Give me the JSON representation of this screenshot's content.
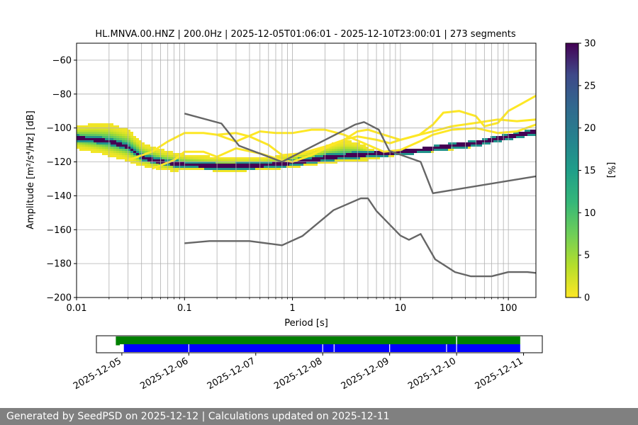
{
  "chart_data": {
    "type": "heatmap",
    "title": "HL.MNVA.00.HNZ | 200.0Hz | 2025-12-05T01:06:01 - 2025-12-10T23:00:01 | 273 segments",
    "xlabel": "Period [s]",
    "ylabel": "Amplitude [m²/s⁴/Hz] [dB]",
    "x_scale": "log",
    "xlim": [
      0.01,
      180
    ],
    "ylim": [
      -200,
      -50
    ],
    "x_ticks": [
      {
        "value": 0.01,
        "label": "0.01"
      },
      {
        "value": 0.1,
        "label": "0.1"
      },
      {
        "value": 1,
        "label": "1"
      },
      {
        "value": 10,
        "label": "10"
      },
      {
        "value": 100,
        "label": "100"
      }
    ],
    "y_ticks": [
      {
        "value": -60,
        "label": "−60"
      },
      {
        "value": -80,
        "label": "−80"
      },
      {
        "value": -100,
        "label": "−100"
      },
      {
        "value": -120,
        "label": "−120"
      },
      {
        "value": -140,
        "label": "−140"
      },
      {
        "value": -160,
        "label": "−160"
      },
      {
        "value": -180,
        "label": "−180"
      },
      {
        "value": -200,
        "label": "−200"
      }
    ],
    "grid": true,
    "colorbar": {
      "label": "[%]",
      "min": 0,
      "max": 30,
      "ticks": [
        {
          "value": 0,
          "label": "0"
        },
        {
          "value": 5,
          "label": "5"
        },
        {
          "value": 10,
          "label": "10"
        },
        {
          "value": 15,
          "label": "15"
        },
        {
          "value": 20,
          "label": "20"
        },
        {
          "value": 25,
          "label": "25"
        },
        {
          "value": 30,
          "label": "30"
        }
      ],
      "colormap": "viridis_r"
    },
    "noise_models": [
      {
        "points": [
          [
            0.1,
            -91.5
          ],
          [
            0.22,
            -97.4
          ],
          [
            0.32,
            -110.5
          ],
          [
            0.8,
            -120.0
          ],
          [
            3.8,
            -98.0
          ],
          [
            4.6,
            -96.5
          ],
          [
            6.3,
            -101.0
          ],
          [
            7.9,
            -113.5
          ],
          [
            15.4,
            -120.0
          ],
          [
            20,
            -138.5
          ],
          [
            180,
            -128.5
          ]
        ]
      },
      {
        "points": [
          [
            0.1,
            -168.0
          ],
          [
            0.17,
            -166.7
          ],
          [
            0.4,
            -166.7
          ],
          [
            0.8,
            -169.2
          ],
          [
            1.24,
            -163.7
          ],
          [
            2.4,
            -148.5
          ],
          [
            4.3,
            -141.5
          ],
          [
            5.0,
            -141.5
          ],
          [
            6.0,
            -149.0
          ],
          [
            10,
            -163.5
          ],
          [
            12,
            -166.0
          ],
          [
            15.4,
            -162.5
          ],
          [
            21,
            -177.5
          ],
          [
            32,
            -185.0
          ],
          [
            45,
            -187.5
          ],
          [
            70,
            -187.5
          ],
          [
            100,
            -185.0
          ],
          [
            150,
            -185.0
          ],
          [
            180,
            -185.5
          ]
        ]
      }
    ],
    "psd_mode": {
      "periods": [
        0.01,
        0.015,
        0.02,
        0.03,
        0.04,
        0.06,
        0.08,
        0.1,
        0.15,
        0.2,
        0.3,
        0.5,
        0.8,
        1,
        1.5,
        2,
        3,
        4,
        5,
        6,
        8,
        10,
        15,
        20,
        30,
        50,
        70,
        100,
        150,
        180
      ],
      "db": [
        -106,
        -107,
        -108,
        -111,
        -117,
        -120,
        -121,
        -121.5,
        -122,
        -122.5,
        -122.5,
        -122,
        -121,
        -120.5,
        -119,
        -117.5,
        -116.5,
        -116,
        -115.5,
        -115,
        -114.5,
        -114,
        -113,
        -112,
        -110.5,
        -109,
        -107,
        -105,
        -103,
        -102
      ]
    },
    "psd_spread": {
      "periods": [
        0.01,
        0.015,
        0.02,
        0.03,
        0.04,
        0.06,
        0.08,
        0.1,
        0.15,
        0.2,
        0.3,
        0.5,
        0.8,
        1,
        1.5,
        2,
        3,
        4,
        5,
        6,
        8,
        10,
        15,
        20,
        30,
        50,
        70,
        100,
        150,
        180
      ],
      "upper_db": [
        -99,
        -98,
        -98,
        -101,
        -109,
        -113,
        -115,
        -116,
        -117,
        -117.5,
        -118,
        -118,
        -117,
        -116,
        -114,
        -111,
        -108,
        -109,
        -112,
        -114,
        -114,
        -113.5,
        -112.5,
        -111,
        -109.5,
        -108,
        -106,
        -104,
        -102,
        -101
      ],
      "lower_db": [
        -112,
        -114,
        -116,
        -119,
        -122,
        -124,
        -125,
        -124.5,
        -124.5,
        -125,
        -125,
        -124.5,
        -123.5,
        -123,
        -121.5,
        -120.5,
        -119.5,
        -119,
        -118.5,
        -117.5,
        -116.5,
        -115.5,
        -114.5,
        -113.5,
        -112.5,
        -110.5,
        -108.5,
        -106.5,
        -104.5,
        -103.5
      ]
    },
    "outlier_traces": [
      {
        "points": [
          [
            0.03,
            -119
          ],
          [
            0.05,
            -114
          ],
          [
            0.07,
            -108
          ],
          [
            0.1,
            -103
          ],
          [
            0.15,
            -103
          ],
          [
            0.2,
            -104
          ],
          [
            0.3,
            -103
          ],
          [
            0.4,
            -105
          ],
          [
            0.6,
            -110
          ],
          [
            0.8,
            -116
          ],
          [
            1.2,
            -115
          ],
          [
            2,
            -111
          ],
          [
            3,
            -107
          ],
          [
            4,
            -102
          ],
          [
            5,
            -101
          ],
          [
            7,
            -104
          ],
          [
            10,
            -107
          ],
          [
            15,
            -104
          ],
          [
            20,
            -98
          ],
          [
            25,
            -91
          ],
          [
            35,
            -90
          ],
          [
            50,
            -93
          ],
          [
            60,
            -99
          ],
          [
            80,
            -97
          ],
          [
            100,
            -90
          ],
          [
            130,
            -86
          ],
          [
            180,
            -81
          ]
        ]
      },
      {
        "points": [
          [
            0.05,
            -124
          ],
          [
            0.08,
            -119
          ],
          [
            0.1,
            -114
          ],
          [
            0.15,
            -114
          ],
          [
            0.2,
            -117
          ],
          [
            0.3,
            -112
          ],
          [
            0.5,
            -115
          ],
          [
            0.8,
            -119
          ],
          [
            1,
            -120
          ],
          [
            1.5,
            -116
          ],
          [
            2,
            -112
          ],
          [
            3,
            -107
          ],
          [
            4,
            -105
          ],
          [
            6,
            -107
          ],
          [
            8,
            -109
          ],
          [
            10,
            -107
          ],
          [
            15,
            -104
          ],
          [
            20,
            -102
          ],
          [
            30,
            -99
          ],
          [
            50,
            -97
          ],
          [
            80,
            -95
          ],
          [
            120,
            -96
          ],
          [
            180,
            -95
          ]
        ]
      },
      {
        "points": [
          [
            0.2,
            -104
          ],
          [
            0.3,
            -108
          ],
          [
            0.5,
            -102
          ],
          [
            0.7,
            -103
          ],
          [
            1,
            -103
          ],
          [
            1.5,
            -101
          ],
          [
            2,
            -101
          ],
          [
            3,
            -104
          ],
          [
            5,
            -110
          ],
          [
            7,
            -114
          ],
          [
            10,
            -113
          ],
          [
            15,
            -108
          ],
          [
            20,
            -104
          ],
          [
            30,
            -101
          ],
          [
            50,
            -100
          ],
          [
            80,
            -103
          ],
          [
            120,
            -102
          ],
          [
            180,
            -98
          ]
        ]
      }
    ],
    "availability": {
      "x_ticks": [
        "2025-12-05",
        "2025-12-06",
        "2025-12-07",
        "2025-12-08",
        "2025-12-09",
        "2025-12-10",
        "2025-12-11"
      ],
      "range_days": [
        -0.38,
        6.28
      ],
      "data_spans": [
        [
          -0.09,
          5.95
        ]
      ],
      "psd_spans": [
        [
          0.03,
          5.95
        ]
      ],
      "early_span": [
        -0.09,
        -0.03
      ],
      "gaps": [
        1.0,
        3.0,
        3.17,
        4.0,
        4.85,
        5.0
      ],
      "colors": {
        "data": "#008000",
        "psd": "#0000ff"
      }
    }
  },
  "footer": {
    "text": "Generated by SeedPSD on 2025-12-12 | Calculations updated on 2025-12-11"
  }
}
